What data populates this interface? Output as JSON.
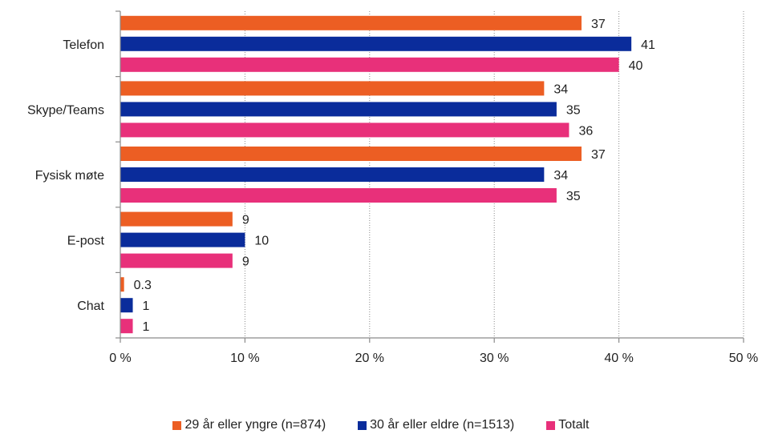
{
  "chart_data": {
    "type": "bar",
    "orientation": "horizontal",
    "categories": [
      "Telefon",
      "Skype/Teams",
      "Fysisk møte",
      "E-post",
      "Chat"
    ],
    "series": [
      {
        "name": "29 år eller yngre (n=874)",
        "color": "#ec5e23",
        "values": [
          37,
          34,
          37,
          9,
          0.3
        ],
        "labels": [
          "37",
          "34",
          "37",
          "9",
          "0.3"
        ]
      },
      {
        "name": "30 år eller eldre (n=1513)",
        "color": "#0a2c9b",
        "values": [
          41,
          35,
          34,
          10,
          1
        ],
        "labels": [
          "41",
          "35",
          "34",
          "10",
          "1"
        ]
      },
      {
        "name": "Totalt",
        "color": "#e8307a",
        "values": [
          40,
          36,
          35,
          9,
          1
        ],
        "labels": [
          "40",
          "36",
          "35",
          "9",
          "1"
        ]
      }
    ],
    "xlim": [
      0,
      50
    ],
    "xticks": [
      0,
      10,
      20,
      30,
      40,
      50
    ],
    "xtick_labels": [
      "0 %",
      "10 %",
      "20 %",
      "30 %",
      "40 %",
      "50 %"
    ],
    "grid": "vertical-dotted",
    "legend_position": "bottom"
  }
}
